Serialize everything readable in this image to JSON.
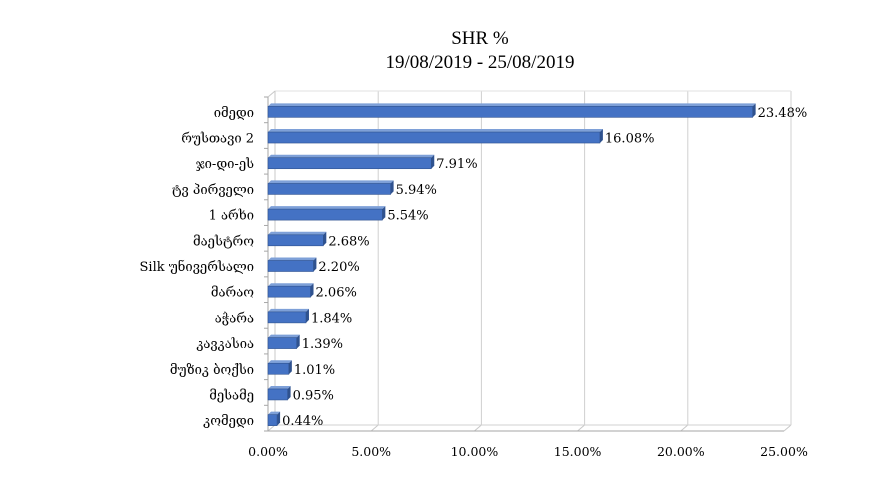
{
  "chart_data": {
    "type": "bar",
    "orientation": "horizontal",
    "title": "SHR %",
    "subtitle": "19/08/2019 - 25/08/2019",
    "categories": [
      "იმედი",
      "რუსთავი 2",
      "ჯი-დი-ეს",
      "ტვ პირველი",
      "1 არხი",
      "მაესტრო",
      "Silk უნივერსალი",
      "მარაო",
      "აჭარა",
      "კავკასია",
      "მუზიკ ბოქსი",
      "მესამე",
      "კომედი"
    ],
    "values": [
      23.48,
      16.08,
      7.91,
      5.94,
      5.54,
      2.68,
      2.2,
      2.06,
      1.84,
      1.39,
      1.01,
      0.95,
      0.44
    ],
    "value_labels": [
      "23.48%",
      "16.08%",
      "7.91%",
      "5.94%",
      "5.54%",
      "2.68%",
      "2.20%",
      "2.06%",
      "1.84%",
      "1.39%",
      "1.01%",
      "0.95%",
      "0.44%"
    ],
    "xlim": [
      0,
      25
    ],
    "xticks": [
      0,
      5,
      10,
      15,
      20,
      25
    ],
    "xtick_labels": [
      "0.00%",
      "5.00%",
      "10.00%",
      "15.00%",
      "20.00%",
      "25.00%"
    ],
    "xlabel": "",
    "ylabel": "",
    "grid": true,
    "legend": "none",
    "bar_color": "#4472C4",
    "bar_edge_color": "#2F528F"
  }
}
